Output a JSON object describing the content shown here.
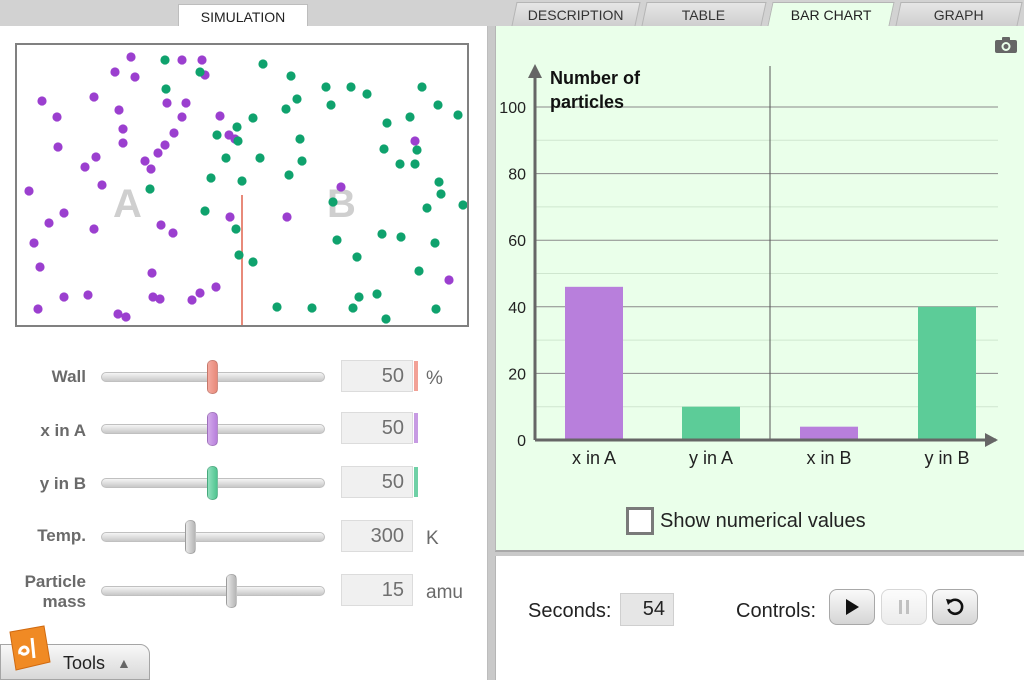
{
  "tabs": {
    "simulation": "SIMULATION",
    "description": "DESCRIPTION",
    "table": "TABLE",
    "bar_chart": "BAR CHART",
    "graph": "GRAPH",
    "active": "BAR CHART"
  },
  "simulation": {
    "region_a_label": "A",
    "region_b_label": "B",
    "x_color": "#9b3fcf",
    "y_color": "#0fa26d",
    "wall_color": "#e88a7a"
  },
  "controls_panel": {
    "wall": {
      "label": "Wall",
      "value": "50",
      "unit": "%",
      "accent": "#f2a196"
    },
    "x_in_a": {
      "label": "x in A",
      "value": "50",
      "unit": "",
      "accent": "#c79be3"
    },
    "y_in_b": {
      "label": "y in B",
      "value": "50",
      "unit": "",
      "accent": "#6fd0a6"
    },
    "temp": {
      "label": "Temp.",
      "value": "300",
      "unit": "K"
    },
    "particle_mass": {
      "label": "Particle mass",
      "value": "15",
      "unit": "amu"
    }
  },
  "chart_data": {
    "type": "bar",
    "title": "",
    "ylabel": "Number of particles",
    "categories": [
      "x in A",
      "y in A",
      "x in B",
      "y in B"
    ],
    "values": [
      46,
      10,
      4,
      40
    ],
    "colors": [
      "#b87fdc",
      "#5ccc98",
      "#b87fdc",
      "#5ccc98"
    ],
    "ylim": [
      0,
      100
    ],
    "yticks": [
      0,
      20,
      40,
      60,
      80,
      100
    ],
    "grid": true
  },
  "show_numerical_values": {
    "label": "Show numerical values",
    "checked": false
  },
  "footer": {
    "seconds_label": "Seconds:",
    "seconds_value": "54",
    "controls_label": "Controls:"
  },
  "tools": {
    "label": "Tools"
  },
  "icons": {
    "play": "play-icon",
    "pause": "pause-icon",
    "reset": "reset-icon",
    "camera": "camera-icon",
    "logo": "explorelearning-logo-icon"
  }
}
